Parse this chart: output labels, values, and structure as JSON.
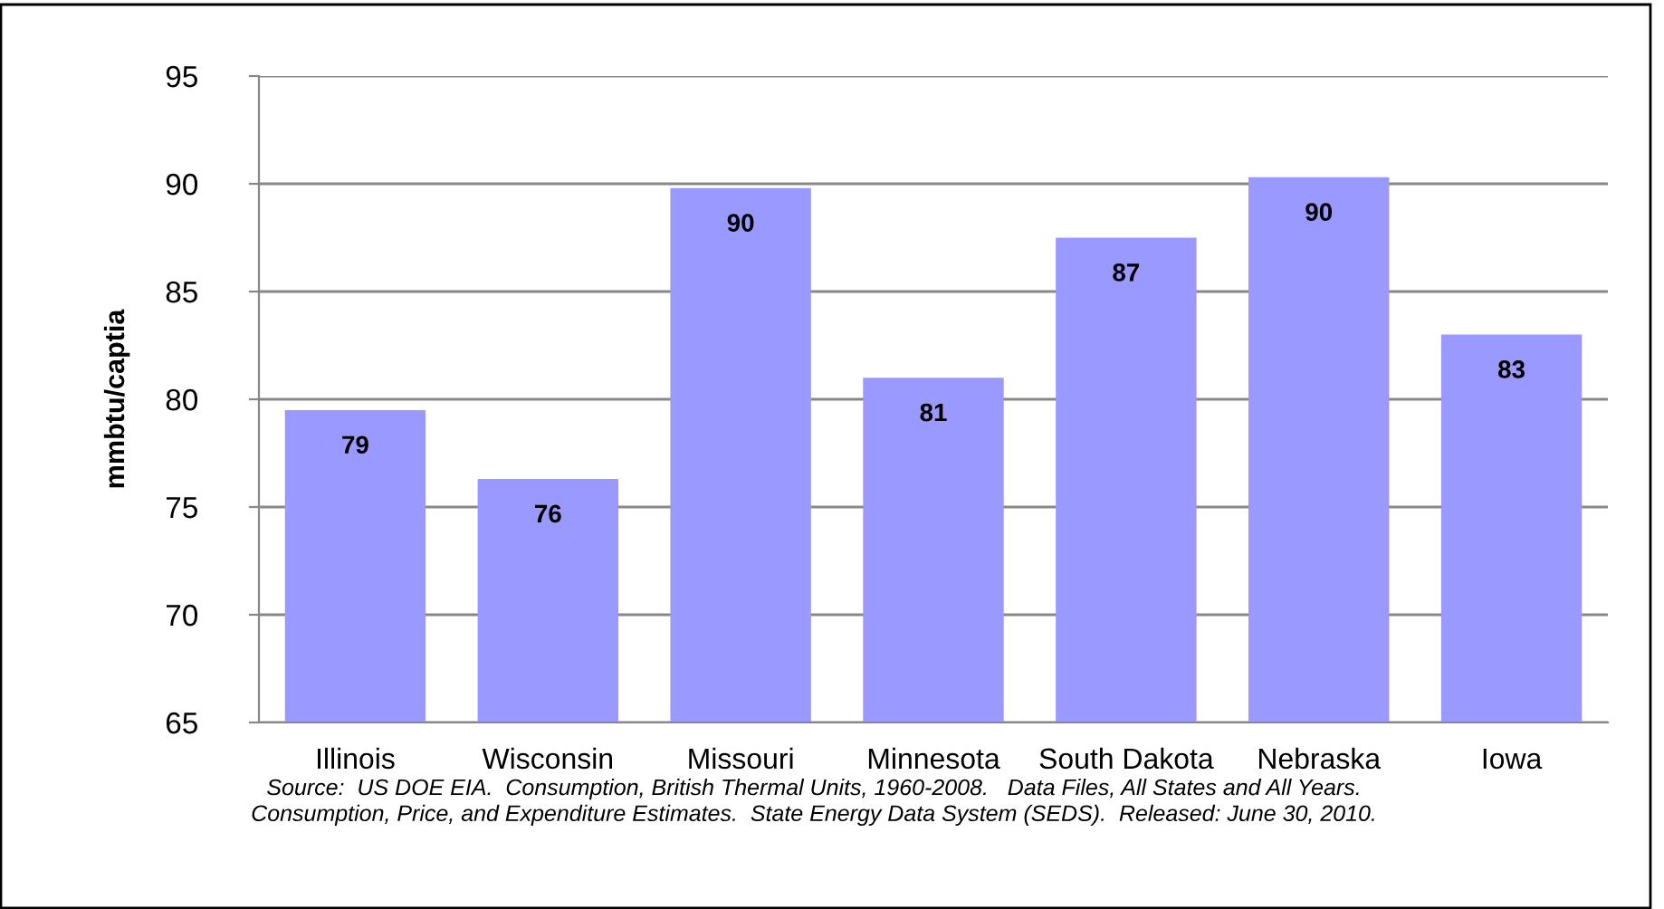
{
  "chart_data": {
    "type": "bar",
    "ylabel": "mmbtu/captia",
    "categories": [
      "Illinois",
      "Wisconsin",
      "Missouri",
      "Minnesota",
      "South Dakota",
      "Nebraska",
      "Iowa"
    ],
    "values": [
      79.5,
      76.3,
      89.8,
      81.0,
      87.5,
      90.3,
      83.0
    ],
    "value_labels": [
      "79",
      "76",
      "90",
      "81",
      "87",
      "90",
      "83"
    ],
    "color": "#9999ff",
    "ylim": [
      65,
      95
    ],
    "yticks": [
      65,
      70,
      75,
      80,
      85,
      90,
      95
    ],
    "grid": "y",
    "legend": false,
    "annotations": [
      "Source:  US DOE EIA.  Consumption, British Thermal Units, 1960-2008.   Data Files, All States and All Years.\nConsumption, Price, and Expenditure Estimates.  State Energy Data System (SEDS).  Released: June 30, 2010."
    ]
  }
}
